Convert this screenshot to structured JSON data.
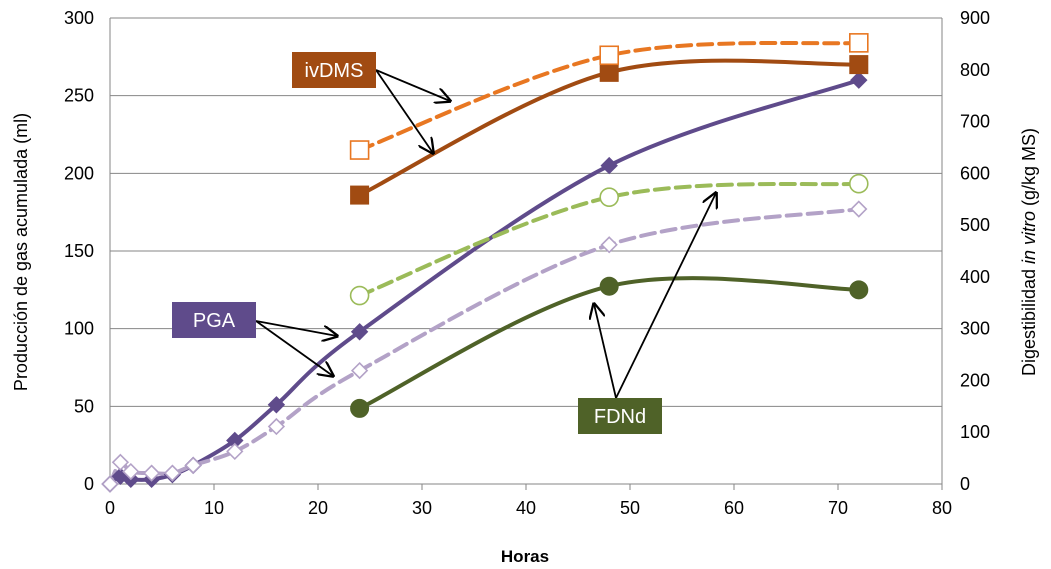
{
  "chart_data": {
    "type": "line",
    "xlabel": "Horas",
    "ylabel": "Producción de gas acumulada (ml)",
    "y2label_parts": [
      "Digestibilidad ",
      "in vitro",
      " (g/kg MS)"
    ],
    "xlim": [
      0,
      80
    ],
    "ylim": [
      0,
      300
    ],
    "y2lim": [
      0,
      900
    ],
    "x_ticks": [
      "0",
      "10",
      "20",
      "30",
      "40",
      "50",
      "60",
      "70",
      "80"
    ],
    "y_ticks": [
      "0",
      "50",
      "100",
      "150",
      "200",
      "250",
      "300"
    ],
    "y2_ticks": [
      "0",
      "100",
      "200",
      "300",
      "400",
      "500",
      "600",
      "700",
      "800",
      "900"
    ],
    "grid": true,
    "series": [
      {
        "axis": "left",
        "color": "#5f4b8b",
        "dashed": false,
        "marker": "diamond-filled",
        "points": [
          [
            0,
            0
          ],
          [
            1,
            5
          ],
          [
            2,
            3
          ],
          [
            4,
            3
          ],
          [
            6,
            6
          ],
          [
            8,
            12
          ],
          [
            12,
            28
          ],
          [
            16,
            51
          ],
          [
            24,
            98
          ],
          [
            48,
            205
          ],
          [
            72,
            260
          ]
        ]
      },
      {
        "axis": "left",
        "color": "#b3a2c7",
        "dashed": true,
        "marker": "diamond-open",
        "points": [
          [
            0,
            0
          ],
          [
            1,
            14
          ],
          [
            2,
            8
          ],
          [
            4,
            7
          ],
          [
            6,
            7
          ],
          [
            8,
            12
          ],
          [
            12,
            21
          ],
          [
            16,
            37
          ],
          [
            24,
            73
          ],
          [
            48,
            154
          ],
          [
            72,
            177
          ]
        ]
      },
      {
        "axis": "right",
        "color": "#a14b12",
        "dashed": false,
        "marker": "square-filled",
        "points": [
          [
            24,
            558
          ],
          [
            48,
            795
          ],
          [
            72,
            810
          ]
        ]
      },
      {
        "axis": "right",
        "color": "#e87722",
        "dashed": true,
        "marker": "square-open",
        "points": [
          [
            24,
            645
          ],
          [
            48,
            828
          ],
          [
            72,
            852
          ]
        ]
      },
      {
        "axis": "right",
        "color": "#4f6228",
        "dashed": false,
        "marker": "circle-filled",
        "points": [
          [
            24,
            146
          ],
          [
            48,
            382
          ],
          [
            72,
            375
          ]
        ]
      },
      {
        "axis": "right",
        "color": "#9bbb59",
        "dashed": true,
        "marker": "circle-open",
        "points": [
          [
            24,
            364
          ],
          [
            48,
            554
          ],
          [
            72,
            580
          ]
        ]
      }
    ],
    "annotations": [
      {
        "text": "ivDMS",
        "color": "#a14b12"
      },
      {
        "text": "PGA",
        "color": "#5f4b8b"
      },
      {
        "text": "FDNd",
        "color": "#4f6228"
      }
    ]
  }
}
